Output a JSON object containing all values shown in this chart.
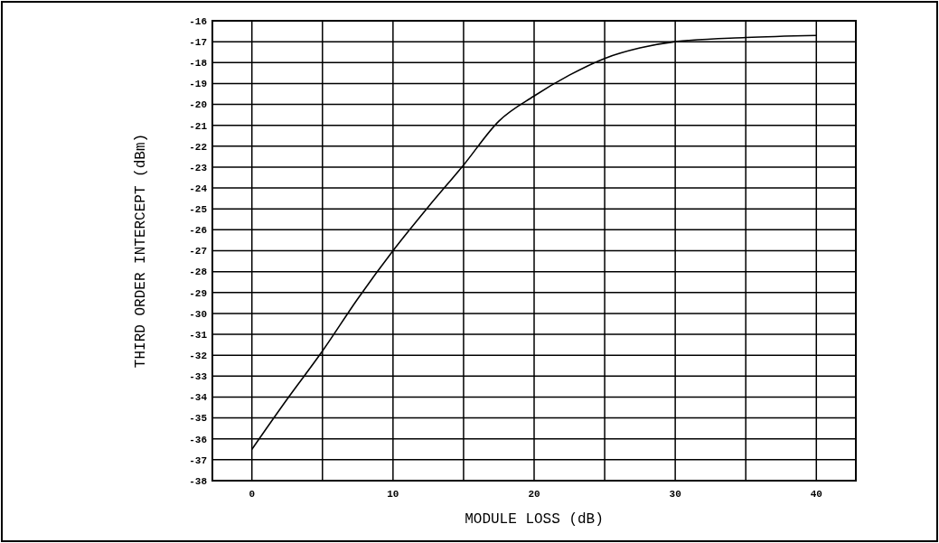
{
  "chart_data": {
    "type": "line",
    "xlabel": "MODULE LOSS (dB)",
    "ylabel": "THIRD ORDER INTERCEPT (dBm)",
    "x": [
      0,
      2.5,
      5,
      7.5,
      10,
      12.5,
      15,
      17.5,
      20,
      22.5,
      25,
      27.5,
      30,
      35,
      40
    ],
    "series": [
      {
        "color": "#000000",
        "values": [
          -36.5,
          -34.1,
          -31.8,
          -29.3,
          -27,
          -24.9,
          -22.9,
          -20.8,
          -19.6,
          -18.6,
          -17.8,
          -17.3,
          -17.0,
          -16.8,
          -16.7
        ]
      }
    ],
    "xlim": [
      -2.8,
      42.8
    ],
    "ylim": [
      -38,
      -16
    ],
    "xticks": [
      0,
      {
        "value": 5,
        "label": null
      },
      10,
      {
        "value": 15,
        "label": null
      },
      20,
      {
        "value": 25,
        "label": null
      },
      30,
      {
        "value": 35,
        "label": null
      },
      40
    ],
    "yticks": [
      -38,
      -37,
      -36,
      -35,
      -34,
      -33,
      -32,
      -31,
      -30,
      -29,
      -28,
      -27,
      -26,
      -25,
      -24,
      -23,
      -22,
      -21,
      -20,
      -19,
      -18,
      -17,
      -16
    ],
    "grid": true,
    "marker": "none",
    "line_style": "solid"
  }
}
